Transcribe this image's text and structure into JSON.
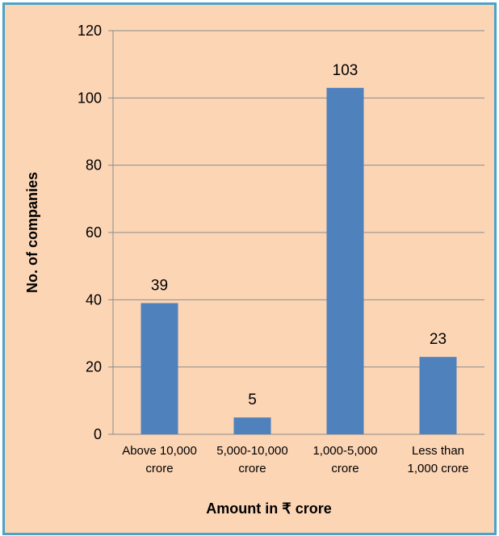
{
  "chart_data": {
    "type": "bar",
    "categories": [
      [
        "Above 10,000",
        "crore"
      ],
      [
        "5,000-10,000",
        "crore"
      ],
      [
        "1,000-5,000",
        "crore"
      ],
      [
        "Less than",
        "1,000 crore"
      ]
    ],
    "values": [
      39,
      5,
      103,
      23
    ],
    "xlabel": "Amount  in ₹ crore",
    "ylabel": "No. of companies",
    "ylim": [
      0,
      120
    ],
    "yticks": [
      0,
      20,
      40,
      60,
      80,
      100,
      120
    ],
    "grid": true,
    "legend": "none",
    "bar_color": "#4f81bd",
    "grid_color": "#8c8c8c"
  }
}
